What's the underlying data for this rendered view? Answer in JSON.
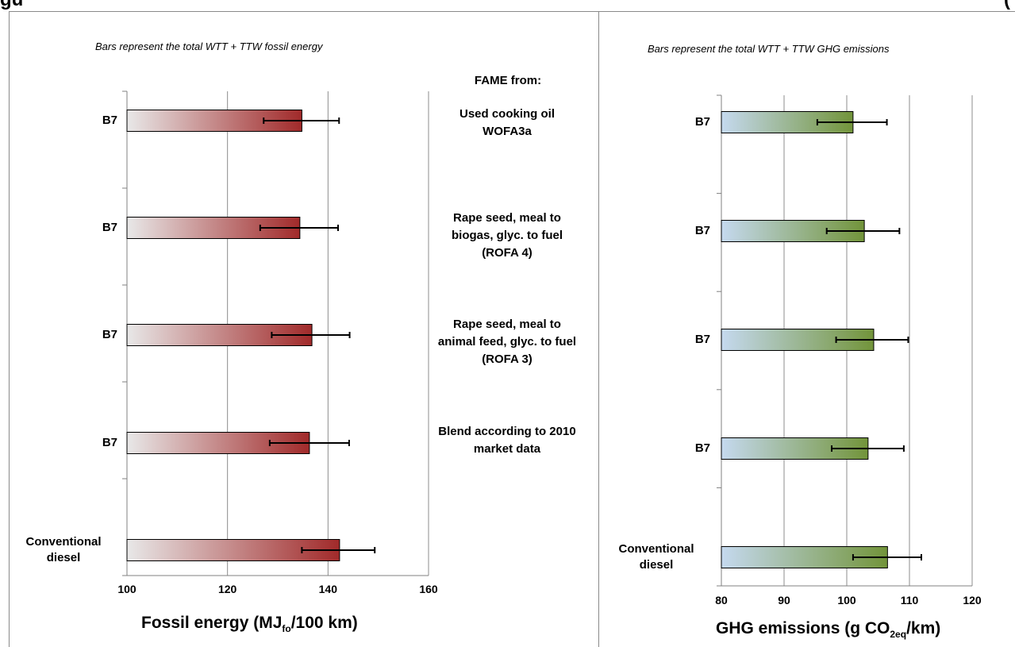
{
  "figure": {
    "title_left": "gu",
    "title_right": "(",
    "fame_header": "FAME from:",
    "descriptions": [
      "Used cooking oil WOFA3a",
      "Rape seed, meal to biogas, glyc. to fuel (ROFA 4)",
      "Rape seed, meal to animal feed, glyc. to fuel (ROFA 3)",
      "Blend according to 2010 market data"
    ]
  },
  "colors": {
    "fossil_start": "#e8e8e8",
    "fossil_end": "#a12a2a",
    "ghg_start": "#c5d9ef",
    "ghg_end": "#72943a",
    "grid": "#8c8c8c",
    "axis": "#808080"
  },
  "chart_data": [
    {
      "type": "bar",
      "orientation": "horizontal",
      "note": "Bars represent the total WTT + TTW fossil energy",
      "xlabel_main": "Fossil energy (MJ",
      "xlabel_sub": "fo",
      "xlabel_tail": "/100 km)",
      "categories": [
        "B7",
        "B7",
        "B7",
        "B7",
        "Conventional diesel"
      ],
      "values": [
        134.8,
        134.4,
        136.8,
        136.3,
        142.3
      ],
      "error_low": [
        127.2,
        126.5,
        128.8,
        128.4,
        134.8
      ],
      "error_high": [
        142.2,
        142.0,
        144.3,
        144.2,
        149.3
      ],
      "xlim": [
        100,
        160
      ],
      "xticks": [
        100,
        120,
        140,
        160
      ],
      "grid": true
    },
    {
      "type": "bar",
      "orientation": "horizontal",
      "note": "Bars represent the total WTT + TTW GHG emissions",
      "xlabel_main": "GHG emissions (g CO",
      "xlabel_sub": "2eq",
      "xlabel_tail": "/km)",
      "categories": [
        "B7",
        "B7",
        "B7",
        "B7",
        "Conventional diesel"
      ],
      "values": [
        101.0,
        102.8,
        104.3,
        103.4,
        106.5
      ],
      "error_low": [
        95.3,
        96.8,
        98.3,
        97.6,
        101.0
      ],
      "error_high": [
        106.4,
        108.4,
        109.8,
        109.1,
        111.9
      ],
      "xlim": [
        80,
        120
      ],
      "xticks": [
        80,
        90,
        100,
        110,
        120
      ],
      "grid": true
    }
  ]
}
